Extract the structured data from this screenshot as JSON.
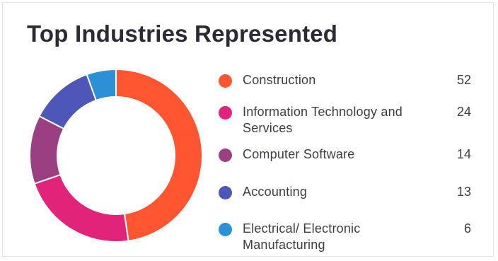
{
  "card": {
    "title": "Top Industries Represented"
  },
  "chart_data": {
    "type": "pie",
    "title": "Top Industries Represented",
    "donut": true,
    "legend_position": "right",
    "categories": [
      "Construction",
      "Information Technology and Services",
      "Computer Software",
      "Accounting",
      "Electrical/ Electronic Manufacturing"
    ],
    "values": [
      52,
      24,
      14,
      13,
      6
    ],
    "colors": [
      "#ff5530",
      "#e1237a",
      "#9a3f82",
      "#4e57b8",
      "#2b90d5"
    ]
  },
  "legend": {
    "items": [
      {
        "label": "Construction",
        "value": "52",
        "color": "#ff5530"
      },
      {
        "label": "Information Technology and Services",
        "value": "24",
        "color": "#e1237a"
      },
      {
        "label": "Computer Software",
        "value": "14",
        "color": "#9a3f82"
      },
      {
        "label": "Accounting",
        "value": "13",
        "color": "#4e57b8"
      },
      {
        "label": "Electrical/ Electronic Manufacturing",
        "value": "6",
        "color": "#2b90d5"
      }
    ]
  }
}
